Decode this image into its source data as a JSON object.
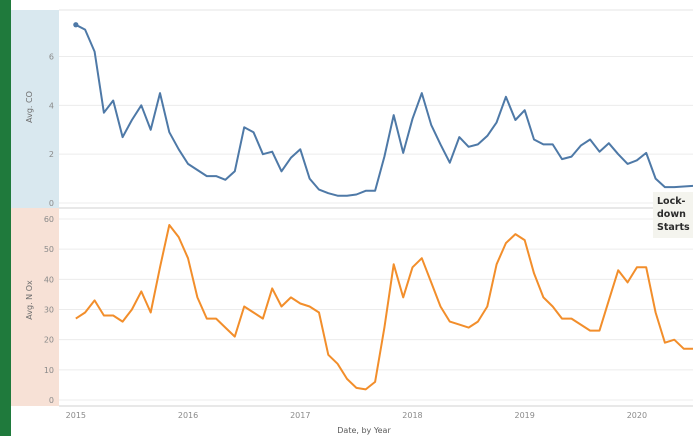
{
  "colors": {
    "left_bar": "#1f7a3c",
    "co_band": "#d9e8ef",
    "nox_band": "#f7e1d6",
    "co_line": "#4e79a7",
    "nox_line": "#f28e2b",
    "grid": "#ececec",
    "annotation_bg": "#f4f4ee"
  },
  "chart_data": [
    {
      "type": "line",
      "ylabel": "Avg. CO",
      "ylim": [
        0,
        7.7
      ],
      "yticks": [
        0,
        2,
        4,
        6
      ],
      "series": [
        {
          "x": [
            2015.0,
            2015.083,
            2015.167,
            2015.25,
            2015.333,
            2015.417,
            2015.5,
            2015.583,
            2015.667,
            2015.75,
            2015.833,
            2015.917,
            2016.0,
            2016.083,
            2016.167,
            2016.25,
            2016.333,
            2016.417,
            2016.5,
            2016.583,
            2016.667,
            2016.75,
            2016.833,
            2016.917,
            2017.0,
            2017.083,
            2017.167,
            2017.25,
            2017.333,
            2017.417,
            2017.5,
            2017.583,
            2017.667,
            2017.75,
            2017.833,
            2017.917,
            2018.0,
            2018.083,
            2018.167,
            2018.25,
            2018.333,
            2018.417,
            2018.5,
            2018.583,
            2018.667,
            2018.75,
            2018.833,
            2018.917,
            2019.0,
            2019.083,
            2019.167,
            2019.25,
            2019.333,
            2019.417,
            2019.5,
            2019.583,
            2019.667,
            2019.75,
            2019.833,
            2019.917,
            2020.0,
            2020.083,
            2020.167,
            2020.25,
            2020.333,
            2020.5
          ],
          "values": [
            7.3,
            7.1,
            6.2,
            3.7,
            4.2,
            2.7,
            3.4,
            4.0,
            3.0,
            4.5,
            2.9,
            2.2,
            1.6,
            1.35,
            1.1,
            1.1,
            0.95,
            1.3,
            3.1,
            2.9,
            2.0,
            2.1,
            1.3,
            1.85,
            2.2,
            1.0,
            0.55,
            0.4,
            0.3,
            0.3,
            0.35,
            0.5,
            0.5,
            1.9,
            3.6,
            2.05,
            3.45,
            4.5,
            3.2,
            2.4,
            1.65,
            2.7,
            2.3,
            2.4,
            2.75,
            3.3,
            4.35,
            3.4,
            3.8,
            2.6,
            2.4,
            2.4,
            1.8,
            1.9,
            2.35,
            2.6,
            2.1,
            2.45,
            2.0,
            1.6,
            1.75,
            2.05,
            1.0,
            0.65,
            0.65,
            0.7
          ]
        }
      ],
      "annotation": "Lock-\ndown\nStarts"
    },
    {
      "type": "line",
      "ylabel": "Avg. N Ox",
      "xlabel": "Date, by Year",
      "ylim": [
        0,
        60
      ],
      "yticks": [
        0,
        10,
        20,
        30,
        40,
        50,
        60
      ],
      "xticks": [
        "2015",
        "2016",
        "2017",
        "2018",
        "2019",
        "2020"
      ],
      "series": [
        {
          "x": [
            2015.0,
            2015.083,
            2015.167,
            2015.25,
            2015.333,
            2015.417,
            2015.5,
            2015.583,
            2015.667,
            2015.75,
            2015.833,
            2015.917,
            2016.0,
            2016.083,
            2016.167,
            2016.25,
            2016.333,
            2016.417,
            2016.5,
            2016.583,
            2016.667,
            2016.75,
            2016.833,
            2016.917,
            2017.0,
            2017.083,
            2017.167,
            2017.25,
            2017.333,
            2017.417,
            2017.5,
            2017.583,
            2017.667,
            2017.75,
            2017.833,
            2017.917,
            2018.0,
            2018.083,
            2018.167,
            2018.25,
            2018.333,
            2018.417,
            2018.5,
            2018.583,
            2018.667,
            2018.75,
            2018.833,
            2018.917,
            2019.0,
            2019.083,
            2019.167,
            2019.25,
            2019.333,
            2019.417,
            2019.5,
            2019.583,
            2019.667,
            2019.75,
            2019.833,
            2019.917,
            2020.0,
            2020.083,
            2020.167,
            2020.25,
            2020.333,
            2020.417,
            2020.5
          ],
          "values": [
            27,
            29,
            33,
            28,
            28,
            26,
            30,
            36,
            29,
            44,
            58,
            54,
            47,
            34,
            27,
            27,
            24,
            21,
            31,
            29,
            27,
            37,
            31,
            34,
            32,
            31,
            29,
            15,
            12,
            7,
            4,
            3.5,
            6,
            24,
            45,
            34,
            44,
            47,
            39,
            31,
            26,
            25,
            24,
            26,
            31,
            45,
            52,
            55,
            53,
            42,
            34,
            31,
            27,
            27,
            25,
            23,
            23,
            33,
            43,
            39,
            44,
            44,
            29,
            19,
            20,
            17,
            17
          ]
        }
      ]
    }
  ]
}
